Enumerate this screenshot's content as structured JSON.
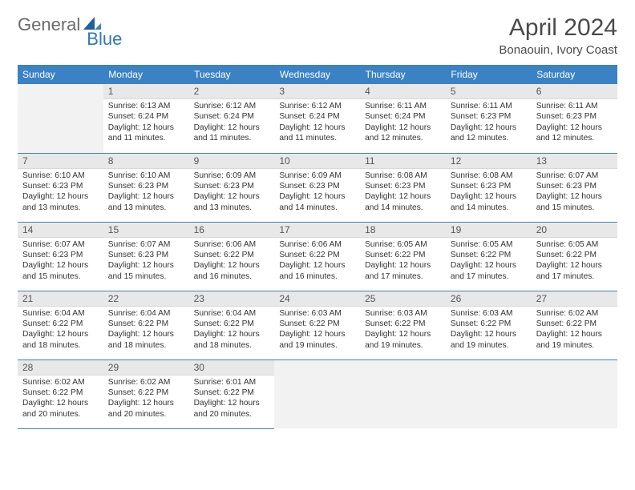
{
  "brand": {
    "word1": "General",
    "word2": "Blue"
  },
  "title": "April 2024",
  "location": "Bonaouin, Ivory Coast",
  "colors": {
    "header_bg": "#3b82c4",
    "header_text": "#ffffff",
    "daynum_bg": "#e8e8e8",
    "empty_bg": "#f2f2f2",
    "rule": "#3b82c4",
    "brand_gray": "#6b6b6b",
    "brand_blue": "#2f78b7"
  },
  "weekdays": [
    "Sunday",
    "Monday",
    "Tuesday",
    "Wednesday",
    "Thursday",
    "Friday",
    "Saturday"
  ],
  "start_offset": 1,
  "days": [
    {
      "n": 1,
      "sr": "6:13 AM",
      "ss": "6:24 PM",
      "dl": "12 hours and 11 minutes."
    },
    {
      "n": 2,
      "sr": "6:12 AM",
      "ss": "6:24 PM",
      "dl": "12 hours and 11 minutes."
    },
    {
      "n": 3,
      "sr": "6:12 AM",
      "ss": "6:24 PM",
      "dl": "12 hours and 11 minutes."
    },
    {
      "n": 4,
      "sr": "6:11 AM",
      "ss": "6:24 PM",
      "dl": "12 hours and 12 minutes."
    },
    {
      "n": 5,
      "sr": "6:11 AM",
      "ss": "6:23 PM",
      "dl": "12 hours and 12 minutes."
    },
    {
      "n": 6,
      "sr": "6:11 AM",
      "ss": "6:23 PM",
      "dl": "12 hours and 12 minutes."
    },
    {
      "n": 7,
      "sr": "6:10 AM",
      "ss": "6:23 PM",
      "dl": "12 hours and 13 minutes."
    },
    {
      "n": 8,
      "sr": "6:10 AM",
      "ss": "6:23 PM",
      "dl": "12 hours and 13 minutes."
    },
    {
      "n": 9,
      "sr": "6:09 AM",
      "ss": "6:23 PM",
      "dl": "12 hours and 13 minutes."
    },
    {
      "n": 10,
      "sr": "6:09 AM",
      "ss": "6:23 PM",
      "dl": "12 hours and 14 minutes."
    },
    {
      "n": 11,
      "sr": "6:08 AM",
      "ss": "6:23 PM",
      "dl": "12 hours and 14 minutes."
    },
    {
      "n": 12,
      "sr": "6:08 AM",
      "ss": "6:23 PM",
      "dl": "12 hours and 14 minutes."
    },
    {
      "n": 13,
      "sr": "6:07 AM",
      "ss": "6:23 PM",
      "dl": "12 hours and 15 minutes."
    },
    {
      "n": 14,
      "sr": "6:07 AM",
      "ss": "6:23 PM",
      "dl": "12 hours and 15 minutes."
    },
    {
      "n": 15,
      "sr": "6:07 AM",
      "ss": "6:23 PM",
      "dl": "12 hours and 15 minutes."
    },
    {
      "n": 16,
      "sr": "6:06 AM",
      "ss": "6:22 PM",
      "dl": "12 hours and 16 minutes."
    },
    {
      "n": 17,
      "sr": "6:06 AM",
      "ss": "6:22 PM",
      "dl": "12 hours and 16 minutes."
    },
    {
      "n": 18,
      "sr": "6:05 AM",
      "ss": "6:22 PM",
      "dl": "12 hours and 17 minutes."
    },
    {
      "n": 19,
      "sr": "6:05 AM",
      "ss": "6:22 PM",
      "dl": "12 hours and 17 minutes."
    },
    {
      "n": 20,
      "sr": "6:05 AM",
      "ss": "6:22 PM",
      "dl": "12 hours and 17 minutes."
    },
    {
      "n": 21,
      "sr": "6:04 AM",
      "ss": "6:22 PM",
      "dl": "12 hours and 18 minutes."
    },
    {
      "n": 22,
      "sr": "6:04 AM",
      "ss": "6:22 PM",
      "dl": "12 hours and 18 minutes."
    },
    {
      "n": 23,
      "sr": "6:04 AM",
      "ss": "6:22 PM",
      "dl": "12 hours and 18 minutes."
    },
    {
      "n": 24,
      "sr": "6:03 AM",
      "ss": "6:22 PM",
      "dl": "12 hours and 19 minutes."
    },
    {
      "n": 25,
      "sr": "6:03 AM",
      "ss": "6:22 PM",
      "dl": "12 hours and 19 minutes."
    },
    {
      "n": 26,
      "sr": "6:03 AM",
      "ss": "6:22 PM",
      "dl": "12 hours and 19 minutes."
    },
    {
      "n": 27,
      "sr": "6:02 AM",
      "ss": "6:22 PM",
      "dl": "12 hours and 19 minutes."
    },
    {
      "n": 28,
      "sr": "6:02 AM",
      "ss": "6:22 PM",
      "dl": "12 hours and 20 minutes."
    },
    {
      "n": 29,
      "sr": "6:02 AM",
      "ss": "6:22 PM",
      "dl": "12 hours and 20 minutes."
    },
    {
      "n": 30,
      "sr": "6:01 AM",
      "ss": "6:22 PM",
      "dl": "12 hours and 20 minutes."
    }
  ],
  "labels": {
    "sunrise": "Sunrise:",
    "sunset": "Sunset:",
    "daylight": "Daylight:"
  }
}
